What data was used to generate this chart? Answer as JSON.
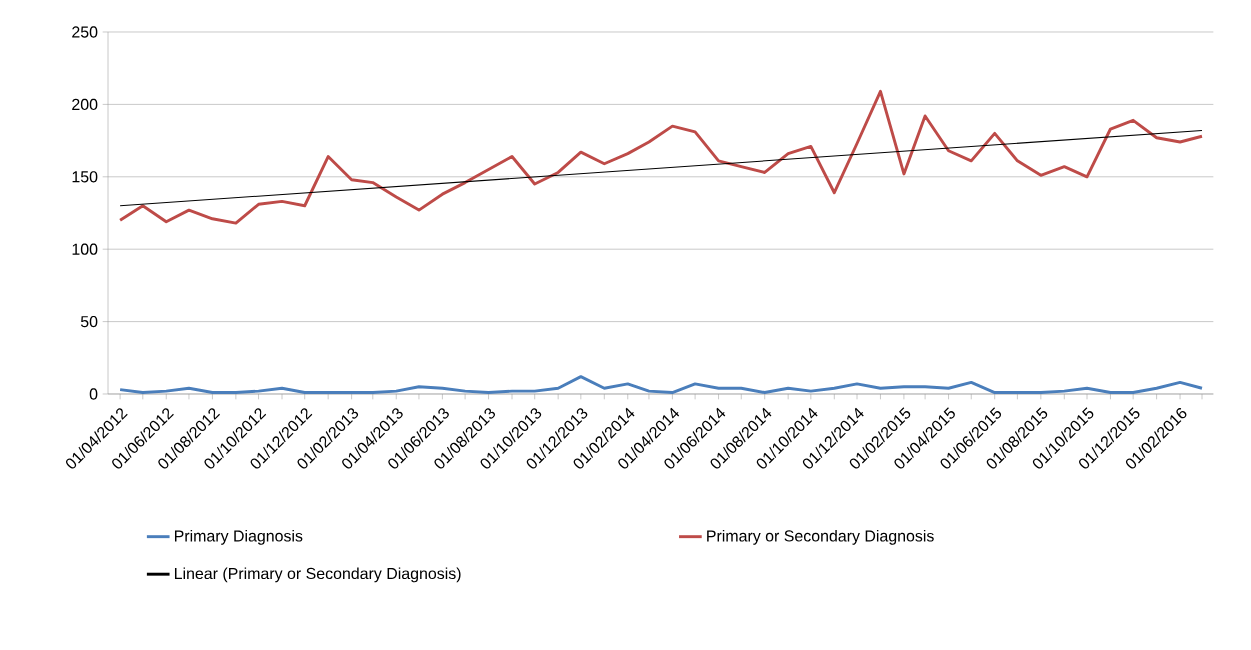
{
  "chart_data": {
    "type": "line",
    "x": [
      "2012-04-01",
      "2012-05-01",
      "2012-06-01",
      "2012-07-01",
      "2012-08-01",
      "2012-09-01",
      "2012-10-01",
      "2012-11-01",
      "2012-12-01",
      "2013-01-01",
      "2013-02-01",
      "2013-03-01",
      "2013-04-01",
      "2013-05-01",
      "2013-06-01",
      "2013-07-01",
      "2013-08-01",
      "2013-09-01",
      "2013-10-01",
      "2013-11-01",
      "2013-12-01",
      "2014-01-01",
      "2014-02-01",
      "2014-03-01",
      "2014-04-01",
      "2014-05-01",
      "2014-06-01",
      "2014-07-01",
      "2014-08-01",
      "2014-09-01",
      "2014-10-01",
      "2014-11-01",
      "2014-12-01",
      "2015-01-01",
      "2015-02-01",
      "2015-03-01",
      "2015-04-01",
      "2015-05-01",
      "2015-06-01",
      "2015-07-01",
      "2015-08-01",
      "2015-09-01",
      "2015-10-01",
      "2015-11-01",
      "2015-12-01",
      "2016-01-01",
      "2016-02-01",
      "2016-03-01"
    ],
    "series": [
      {
        "name": "Primary Diagnosis",
        "color": "#4a7ebb",
        "values": [
          3,
          1,
          2,
          4,
          1,
          1,
          2,
          4,
          1,
          1,
          1,
          1,
          2,
          5,
          4,
          2,
          1,
          2,
          2,
          4,
          12,
          4,
          7,
          2,
          1,
          7,
          4,
          4,
          1,
          4,
          2,
          4,
          7,
          4,
          5,
          5,
          4,
          8,
          1,
          1,
          1,
          2,
          4,
          1,
          1,
          4,
          8,
          4
        ]
      },
      {
        "name": "Primary or Secondary Diagnosis",
        "color": "#be4b48",
        "values": [
          120,
          130,
          119,
          127,
          121,
          118,
          131,
          133,
          130,
          164,
          148,
          146,
          136,
          127,
          138,
          146,
          155,
          164,
          145,
          153,
          167,
          159,
          166,
          174,
          185,
          181,
          161,
          157,
          153,
          166,
          171,
          139,
          173,
          209,
          152,
          192,
          168,
          161,
          180,
          161,
          151,
          157,
          150,
          183,
          189,
          177,
          174,
          178
        ]
      },
      {
        "name": "Linear (Primary or Secondary Diagnosis)",
        "type": "line",
        "color": "#000000",
        "x": [
          "2012-04-01",
          "2016-03-01"
        ],
        "values": [
          130,
          182
        ]
      }
    ],
    "xlim": [
      "2012-03-16",
      "2016-03-16"
    ],
    "xticks": [
      {
        "value": "2012-04-01",
        "label": "01/04/2012"
      },
      {
        "value": "2012-05-01",
        "label": null
      },
      {
        "value": "2012-06-01",
        "label": "01/06/2012"
      },
      {
        "value": "2012-07-01",
        "label": null
      },
      {
        "value": "2012-08-01",
        "label": "01/08/2012"
      },
      {
        "value": "2012-09-01",
        "label": null
      },
      {
        "value": "2012-10-01",
        "label": "01/10/2012"
      },
      {
        "value": "2012-11-01",
        "label": null
      },
      {
        "value": "2012-12-01",
        "label": "01/12/2012"
      },
      {
        "value": "2013-01-01",
        "label": null
      },
      {
        "value": "2013-02-01",
        "label": "01/02/2013"
      },
      {
        "value": "2013-03-01",
        "label": null
      },
      {
        "value": "2013-04-01",
        "label": "01/04/2013"
      },
      {
        "value": "2013-05-01",
        "label": null
      },
      {
        "value": "2013-06-01",
        "label": "01/06/2013"
      },
      {
        "value": "2013-07-01",
        "label": null
      },
      {
        "value": "2013-08-01",
        "label": "01/08/2013"
      },
      {
        "value": "2013-09-01",
        "label": null
      },
      {
        "value": "2013-10-01",
        "label": "01/10/2013"
      },
      {
        "value": "2013-11-01",
        "label": null
      },
      {
        "value": "2013-12-01",
        "label": "01/12/2013"
      },
      {
        "value": "2014-01-01",
        "label": null
      },
      {
        "value": "2014-02-01",
        "label": "01/02/2014"
      },
      {
        "value": "2014-03-01",
        "label": null
      },
      {
        "value": "2014-04-01",
        "label": "01/04/2014"
      },
      {
        "value": "2014-05-01",
        "label": null
      },
      {
        "value": "2014-06-01",
        "label": "01/06/2014"
      },
      {
        "value": "2014-07-01",
        "label": null
      },
      {
        "value": "2014-08-01",
        "label": "01/08/2014"
      },
      {
        "value": "2014-09-01",
        "label": null
      },
      {
        "value": "2014-10-01",
        "label": "01/10/2014"
      },
      {
        "value": "2014-11-01",
        "label": null
      },
      {
        "value": "2014-12-01",
        "label": "01/12/2014"
      },
      {
        "value": "2015-01-01",
        "label": null
      },
      {
        "value": "2015-02-01",
        "label": "01/02/2015"
      },
      {
        "value": "2015-03-01",
        "label": null
      },
      {
        "value": "2015-04-01",
        "label": "01/04/2015"
      },
      {
        "value": "2015-05-01",
        "label": null
      },
      {
        "value": "2015-06-01",
        "label": "01/06/2015"
      },
      {
        "value": "2015-07-01",
        "label": null
      },
      {
        "value": "2015-08-01",
        "label": "01/08/2015"
      },
      {
        "value": "2015-09-01",
        "label": null
      },
      {
        "value": "2015-10-01",
        "label": "01/10/2015"
      },
      {
        "value": "2015-11-01",
        "label": null
      },
      {
        "value": "2015-12-01",
        "label": "01/12/2015"
      },
      {
        "value": "2016-01-01",
        "label": null
      },
      {
        "value": "2016-02-01",
        "label": "01/02/2016"
      },
      {
        "value": "2016-03-01",
        "label": null
      }
    ],
    "ylim": [
      0,
      250
    ],
    "yticks": [
      0,
      50,
      100,
      150,
      200,
      250
    ],
    "grid": "y",
    "legend": "bottom"
  }
}
